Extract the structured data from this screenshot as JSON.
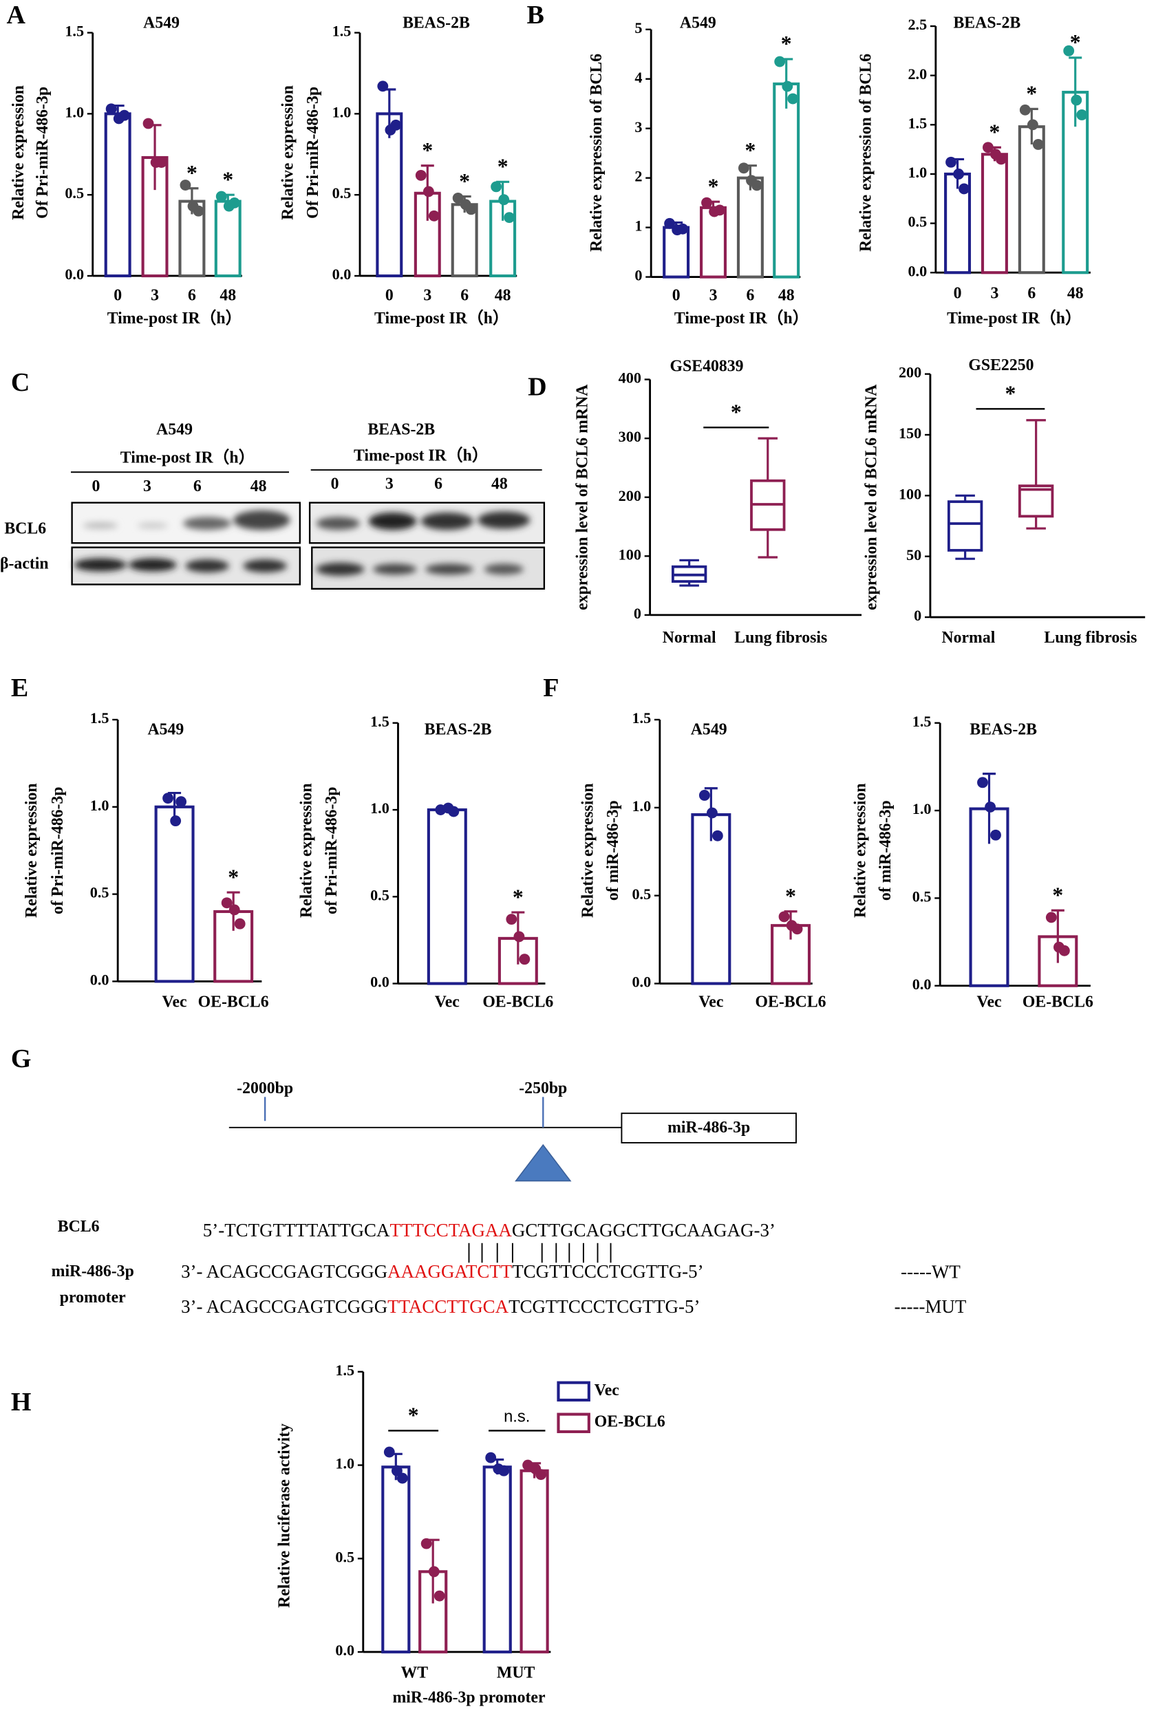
{
  "panel_labels": [
    "A",
    "B",
    "C",
    "D",
    "E",
    "F",
    "G",
    "H"
  ],
  "chart_data": [
    {
      "type": "bar",
      "title": "A549",
      "categories": [
        "0",
        "3",
        "6",
        "48"
      ],
      "values": [
        1.0,
        0.73,
        0.46,
        0.46
      ],
      "errors": [
        0.05,
        0.2,
        0.08,
        0.04
      ],
      "points": [
        [
          1.03,
          0.97,
          0.99
        ],
        [
          0.94,
          0.7,
          0.7
        ],
        [
          0.56,
          0.43,
          0.4
        ],
        [
          0.49,
          0.43,
          0.45
        ]
      ],
      "colors": [
        "#1f1f8a",
        "#8e1f52",
        "#5a5a5a",
        "#1d9c8f"
      ],
      "annotations": [
        null,
        null,
        "*",
        "*"
      ],
      "y_label": [
        "Relative expression",
        "Of Pri-miR-486-3p"
      ],
      "x_label": "Time-post IR（h）",
      "ylim": [
        0,
        1.5
      ],
      "yticks": [
        {
          "value": 0,
          "label": "0.0"
        },
        0.5,
        {
          "value": 1,
          "label": "1.0"
        },
        1.5
      ]
    },
    {
      "type": "bar",
      "title": "BEAS-2B",
      "categories": [
        "0",
        "3",
        "6",
        "48"
      ],
      "values": [
        1.0,
        0.51,
        0.44,
        0.46
      ],
      "errors": [
        0.15,
        0.17,
        0.05,
        0.12
      ],
      "points": [
        [
          1.17,
          0.9,
          0.93
        ],
        [
          0.62,
          0.52,
          0.37
        ],
        [
          0.48,
          0.44,
          0.41
        ],
        [
          0.55,
          0.47,
          0.36
        ]
      ],
      "colors": [
        "#1f1f8a",
        "#8e1f52",
        "#5a5a5a",
        "#1d9c8f"
      ],
      "annotations": [
        null,
        "*",
        "*",
        "*"
      ],
      "y_label": [
        "Relative expression",
        "Of Pri-miR-486-3p"
      ],
      "x_label": "Time-post  IR（h）",
      "ylim": [
        0,
        1.5
      ],
      "yticks": [
        {
          "value": 0,
          "label": "0.0"
        },
        0.5,
        {
          "value": 1,
          "label": "1.0"
        },
        1.5
      ]
    },
    {
      "type": "bar",
      "title": "A549",
      "categories": [
        "0",
        "3",
        "6",
        "48"
      ],
      "values": [
        1.0,
        1.4,
        2.0,
        3.9
      ],
      "errors": [
        0.1,
        0.12,
        0.25,
        0.5
      ],
      "points": [
        [
          1.08,
          0.95,
          0.97
        ],
        [
          1.5,
          1.32,
          1.35
        ],
        [
          2.2,
          1.95,
          1.85
        ],
        [
          4.35,
          3.85,
          3.6
        ]
      ],
      "colors": [
        "#1f1f8a",
        "#8e1f52",
        "#5a5a5a",
        "#1d9c8f"
      ],
      "annotations": [
        null,
        "*",
        "*",
        "*"
      ],
      "y_label": [
        "Relative expression  of BCL6"
      ],
      "x_label": "Time-post IR（h）",
      "ylim": [
        0,
        5
      ],
      "yticks": [
        0,
        1,
        2,
        3,
        4,
        5
      ]
    },
    {
      "type": "bar",
      "title": "BEAS-2B",
      "categories": [
        "0",
        "3",
        "6",
        "48"
      ],
      "values": [
        1.0,
        1.2,
        1.48,
        1.83
      ],
      "errors": [
        0.15,
        0.07,
        0.18,
        0.35
      ],
      "points": [
        [
          1.12,
          1.0,
          0.85
        ],
        [
          1.27,
          1.2,
          1.15
        ],
        [
          1.65,
          1.5,
          1.3
        ],
        [
          2.25,
          1.75,
          1.6
        ]
      ],
      "colors": [
        "#1f1f8a",
        "#8e1f52",
        "#5a5a5a",
        "#1d9c8f"
      ],
      "annotations": [
        null,
        "*",
        "*",
        "*"
      ],
      "y_label": [
        "Relative expression of BCL6"
      ],
      "x_label": "Time-post IR（h）",
      "ylim": [
        0,
        2.5
      ],
      "yticks": [
        {
          "value": 0,
          "label": "0.0"
        },
        0.5,
        {
          "value": 1,
          "label": "1.0"
        },
        1.5,
        {
          "value": 2,
          "label": "2.0"
        },
        2.5
      ]
    },
    {
      "type": "box",
      "title": "GSE40839",
      "categories": [
        "Normal",
        "Lung fibrosis"
      ],
      "boxes": [
        {
          "min": 50,
          "q1": 57,
          "median": 68,
          "q3": 82,
          "max": 93
        },
        {
          "min": 98,
          "q1": 145,
          "median": 188,
          "q3": 228,
          "max": 300
        }
      ],
      "colors": [
        "#1f1f8a",
        "#8e1f52"
      ],
      "significance": "*",
      "y_label": [
        "expression  level  of  BCL6 mRNA"
      ],
      "ylim": [
        0,
        400
      ],
      "yticks": [
        0,
        100,
        200,
        300,
        400
      ]
    },
    {
      "type": "box",
      "title": "GSE2250",
      "categories": [
        "Normal",
        "Lung fibrosis"
      ],
      "boxes": [
        {
          "min": 48,
          "q1": 55,
          "median": 77,
          "q3": 95,
          "max": 100
        },
        {
          "min": 73,
          "q1": 83,
          "median": 105,
          "q3": 108,
          "max": 162
        }
      ],
      "colors": [
        "#1f1f8a",
        "#8e1f52"
      ],
      "significance": "*",
      "y_label": [
        "expression  level  of BCL6 mRNA"
      ],
      "ylim": [
        0,
        200
      ],
      "yticks": [
        0,
        50,
        100,
        150,
        200
      ]
    },
    {
      "type": "bar",
      "title": "A549",
      "categories": [
        "Vec",
        "OE-BCL6"
      ],
      "values": [
        1.0,
        0.4
      ],
      "errors": [
        0.08,
        0.11
      ],
      "points": [
        [
          1.05,
          0.92,
          1.03
        ],
        [
          0.45,
          0.41,
          0.33
        ]
      ],
      "colors": [
        "#1f1f8a",
        "#8e1f52"
      ],
      "annotations": [
        null,
        "*"
      ],
      "y_label": [
        "Relative expression",
        "of  Pri-miR-486-3p"
      ],
      "ylim": [
        0,
        1.5
      ],
      "yticks": [
        {
          "value": 0,
          "label": "0.0"
        },
        0.5,
        {
          "value": 1,
          "label": "1.0"
        },
        1.5
      ]
    },
    {
      "type": "bar",
      "title": "BEAS-2B",
      "categories": [
        "Vec",
        "OE-BCL6"
      ],
      "values": [
        1.0,
        0.26
      ],
      "errors": [
        0.01,
        0.15
      ],
      "points": [
        [
          1.0,
          1.01,
          0.99
        ],
        [
          0.37,
          0.27,
          0.14
        ]
      ],
      "colors": [
        "#1f1f8a",
        "#8e1f52"
      ],
      "annotations": [
        null,
        "*"
      ],
      "y_label": [
        "Relative expression",
        "of Pri-miR-486-3p"
      ],
      "ylim": [
        0,
        1.5
      ],
      "yticks": [
        {
          "value": 0,
          "label": "0.0"
        },
        0.5,
        {
          "value": 1,
          "label": "1.0"
        },
        1.5
      ]
    },
    {
      "type": "bar",
      "title": "A549",
      "categories": [
        "Vec",
        "OE-BCL6"
      ],
      "values": [
        0.96,
        0.33
      ],
      "errors": [
        0.15,
        0.08
      ],
      "points": [
        [
          1.07,
          0.97,
          0.84
        ],
        [
          0.38,
          0.33,
          0.31
        ]
      ],
      "colors": [
        "#1f1f8a",
        "#8e1f52"
      ],
      "annotations": [
        null,
        "*"
      ],
      "y_label": [
        "Relative expression",
        "of miR-486-3p"
      ],
      "ylim": [
        0,
        1.5
      ],
      "yticks": [
        {
          "value": 0,
          "label": "0.0"
        },
        0.5,
        {
          "value": 1,
          "label": "1.0"
        },
        1.5
      ]
    },
    {
      "type": "bar",
      "title": "BEAS-2B",
      "categories": [
        "Vec",
        "OE-BCL6"
      ],
      "values": [
        1.01,
        0.28
      ],
      "errors": [
        0.2,
        0.15
      ],
      "points": [
        [
          1.16,
          1.02,
          0.86
        ],
        [
          0.39,
          0.22,
          0.2
        ]
      ],
      "colors": [
        "#1f1f8a",
        "#8e1f52"
      ],
      "annotations": [
        null,
        "*"
      ],
      "y_label": [
        "Relative expression",
        "of miR-486-3p"
      ],
      "ylim": [
        0,
        1.5
      ],
      "yticks": [
        {
          "value": 0,
          "label": "0.0"
        },
        0.5,
        {
          "value": 1,
          "label": "1.0"
        },
        1.5
      ]
    },
    {
      "type": "bar",
      "categories": [
        "WT",
        "MUT"
      ],
      "series": [
        {
          "name": "Vec",
          "color": "#1f1f8a",
          "values": [
            0.99,
            0.99
          ],
          "errors": [
            0.07,
            0.04
          ],
          "points": [
            [
              1.07,
              0.97,
              0.93
            ],
            [
              1.04,
              0.98,
              0.97
            ]
          ]
        },
        {
          "name": "OE-BCL6",
          "color": "#8e1f52",
          "values": [
            0.43,
            0.97
          ],
          "errors": [
            0.17,
            0.04
          ],
          "points": [
            [
              0.58,
              0.43,
              0.3
            ],
            [
              1.0,
              0.98,
              0.95
            ]
          ]
        }
      ],
      "annotations": [
        "*",
        "n.s."
      ],
      "x_label": "miR-486-3p promoter",
      "y_label": [
        "Relative luciferase activity"
      ],
      "ylim": [
        0,
        1.5
      ],
      "yticks": [
        {
          "value": 0,
          "label": "0.0"
        },
        0.5,
        {
          "value": 1,
          "label": "1.0"
        },
        1.5
      ]
    }
  ],
  "blot": {
    "groups": [
      {
        "title": "A549",
        "axis_label": "Time-post IR（h）",
        "lanes": [
          "0",
          "3",
          "6",
          "48"
        ]
      },
      {
        "title": "BEAS-2B",
        "axis_label": "Time-post IR（h）",
        "lanes": [
          "0",
          "3",
          "6",
          "48"
        ]
      }
    ],
    "rows": [
      "BCL6",
      "β-actin"
    ]
  },
  "diagram": {
    "positions": [
      "-2000bp",
      "-250bp"
    ],
    "gene_box": "miR-486-3p",
    "gene_label": "BCL6",
    "promoter_label": [
      "miR-486-3p",
      "promoter"
    ],
    "sequences": [
      {
        "parts": [
          "5’-TCTGTTTTATTGCA",
          "TTTCCTAGAA",
          "GCTTGCAGGCTTGCAAGAG-3’"
        ]
      },
      {
        "parts": [
          "3’- ACAGCCGAGTCGGG",
          "AAAGGATCTT",
          "TCGTTCCCTCGTTG-5’"
        ],
        "tag": "-----WT"
      },
      {
        "parts": [
          "3’- ACAGCCGAGTCGGG",
          "TTACCTTGCA",
          "TCGTTCCCTCGTTG-5’"
        ],
        "tag": "-----MUT"
      }
    ]
  }
}
